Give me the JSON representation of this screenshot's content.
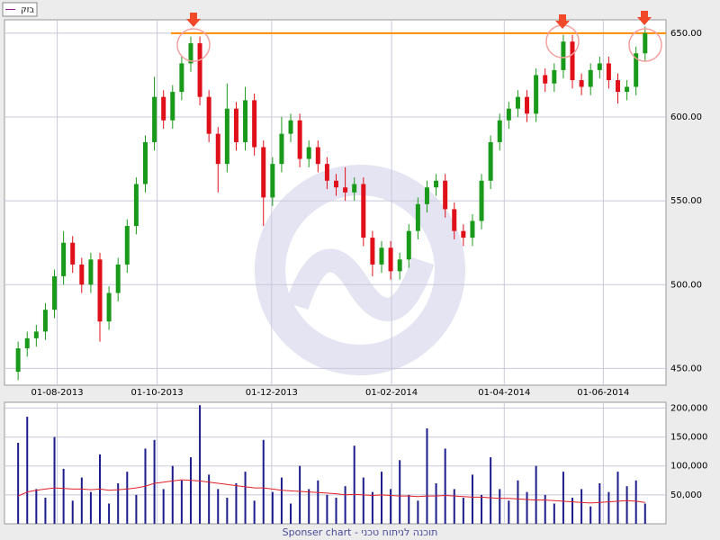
{
  "chart_data": [
    {
      "type": "candlestick",
      "name": "בזק",
      "legend": "top-left",
      "grid": true,
      "up_color": "#1a9a1a",
      "down_color": "#e0101a",
      "hline": 650,
      "hline_color": "#ff8c00",
      "xlim": [
        -1.5,
        71.3
      ],
      "xticks": [
        {
          "value": 4.3,
          "label": "01-08-2013"
        },
        {
          "value": 15.3,
          "label": "01-10-2013"
        },
        {
          "value": 27.9,
          "label": "01-12-2013"
        },
        {
          "value": 41.1,
          "label": "01-02-2014"
        },
        {
          "value": 53.5,
          "label": "01-04-2014"
        },
        {
          "value": 64.4,
          "label": "01-06-2014"
        }
      ],
      "ylim": [
        440,
        658
      ],
      "yticks": [
        {
          "value": 450,
          "label": "450.00"
        },
        {
          "value": 500,
          "label": "500.00"
        },
        {
          "value": 550,
          "label": "550.00"
        },
        {
          "value": 600,
          "label": "600.00"
        },
        {
          "value": 650,
          "label": "650.00"
        }
      ],
      "open": [
        448,
        462,
        468,
        472,
        485,
        505,
        525,
        512,
        500,
        515,
        478,
        495,
        512,
        535,
        560,
        585,
        612,
        598,
        615,
        632,
        644,
        612,
        590,
        572,
        605,
        585,
        610,
        582,
        552,
        572,
        590,
        598,
        575,
        582,
        572,
        562,
        558,
        555,
        560,
        528,
        512,
        522,
        508,
        515,
        532,
        548,
        558,
        562,
        545,
        532,
        528,
        538,
        562,
        585,
        598,
        605,
        612,
        602,
        625,
        620,
        628,
        645,
        622,
        618,
        628,
        632,
        622,
        615,
        618,
        638
      ],
      "high": [
        466,
        472,
        476,
        489,
        509,
        532,
        529,
        516,
        519,
        519,
        499,
        516,
        539,
        564,
        589,
        624,
        616,
        619,
        636,
        648,
        648,
        616,
        594,
        620,
        609,
        618,
        614,
        586,
        576,
        600,
        602,
        602,
        586,
        586,
        576,
        566,
        570,
        564,
        564,
        532,
        526,
        526,
        519,
        536,
        552,
        562,
        566,
        566,
        549,
        536,
        542,
        566,
        589,
        602,
        609,
        616,
        616,
        629,
        629,
        632,
        649,
        649,
        626,
        632,
        636,
        636,
        626,
        622,
        642,
        654
      ],
      "low": [
        443,
        457,
        463,
        467,
        480,
        500,
        507,
        495,
        495,
        466,
        473,
        490,
        507,
        530,
        555,
        580,
        593,
        593,
        610,
        627,
        607,
        585,
        555,
        567,
        580,
        580,
        577,
        535,
        547,
        567,
        585,
        570,
        570,
        567,
        557,
        553,
        550,
        550,
        523,
        505,
        507,
        503,
        503,
        510,
        527,
        543,
        553,
        540,
        527,
        523,
        523,
        533,
        557,
        580,
        593,
        600,
        597,
        597,
        615,
        615,
        623,
        617,
        613,
        613,
        623,
        617,
        608,
        610,
        613,
        633
      ],
      "close": [
        462,
        468,
        472,
        485,
        505,
        525,
        512,
        500,
        515,
        478,
        495,
        512,
        535,
        560,
        585,
        612,
        598,
        615,
        632,
        644,
        612,
        590,
        572,
        605,
        585,
        610,
        582,
        552,
        572,
        590,
        598,
        575,
        582,
        572,
        562,
        558,
        555,
        560,
        528,
        512,
        522,
        508,
        515,
        532,
        548,
        558,
        562,
        545,
        532,
        528,
        538,
        562,
        585,
        598,
        605,
        612,
        602,
        625,
        620,
        628,
        645,
        622,
        618,
        628,
        632,
        622,
        615,
        618,
        638,
        650
      ]
    },
    {
      "type": "bar",
      "color": "#1c1c8c",
      "ma_color": "#e0202a",
      "ylim": [
        0,
        210000
      ],
      "yticks": [
        {
          "value": 50000,
          "label": "50,000"
        },
        {
          "value": 100000,
          "label": "100,000"
        },
        {
          "value": 150000,
          "label": "150,000"
        },
        {
          "value": 200000,
          "label": "200,000"
        }
      ],
      "values": [
        140000,
        185000,
        60000,
        45000,
        150000,
        95000,
        40000,
        80000,
        55000,
        120000,
        35000,
        70000,
        90000,
        50000,
        130000,
        145000,
        60000,
        100000,
        75000,
        115000,
        205000,
        85000,
        60000,
        45000,
        70000,
        90000,
        40000,
        145000,
        55000,
        80000,
        35000,
        100000,
        60000,
        75000,
        50000,
        45000,
        65000,
        135000,
        80000,
        55000,
        90000,
        60000,
        110000,
        50000,
        40000,
        165000,
        70000,
        130000,
        60000,
        45000,
        85000,
        50000,
        115000,
        60000,
        40000,
        75000,
        55000,
        100000,
        50000,
        35000,
        90000,
        45000,
        60000,
        30000,
        70000,
        55000,
        90000,
        65000,
        75000,
        35000
      ],
      "ma": [
        48000,
        55000,
        58000,
        60000,
        62000,
        61000,
        60000,
        60000,
        59000,
        60000,
        58000,
        59000,
        60000,
        62000,
        65000,
        70000,
        72000,
        74000,
        76000,
        75000,
        74000,
        72000,
        70000,
        68000,
        66000,
        64000,
        62000,
        62000,
        60000,
        58000,
        57000,
        56000,
        55000,
        54000,
        53000,
        52000,
        50000,
        51000,
        50000,
        49000,
        50000,
        49000,
        48000,
        48000,
        47000,
        48000,
        48000,
        49000,
        48000,
        47000,
        46000,
        46000,
        45000,
        44000,
        44000,
        43000,
        42000,
        41000,
        41000,
        40000,
        39000,
        38000,
        37000,
        36000,
        37000,
        38000,
        39000,
        40000,
        39000,
        37000
      ]
    }
  ],
  "footer": "Sponser chart - תוכנה לניתוח טכני"
}
